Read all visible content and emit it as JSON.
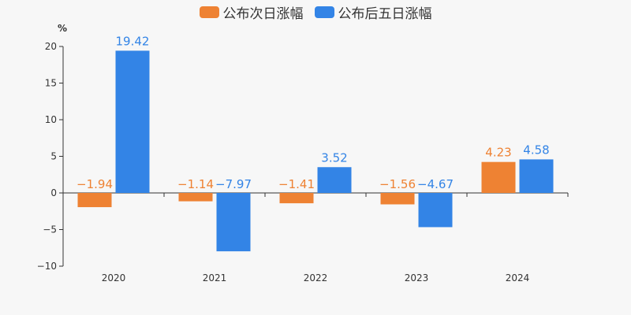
{
  "chart_data": {
    "type": "bar",
    "unit": "%",
    "categories": [
      "2020",
      "2021",
      "2022",
      "2023",
      "2024"
    ],
    "series": [
      {
        "name": "公布次日涨幅",
        "color": "#ee8233",
        "values": [
          -1.94,
          -1.14,
          -1.41,
          -1.56,
          4.23
        ]
      },
      {
        "name": "公布后五日涨幅",
        "color": "#3384e6",
        "values": [
          19.42,
          -7.97,
          3.52,
          -4.67,
          4.58
        ]
      }
    ],
    "ylim": [
      -10,
      20
    ],
    "yticks": [
      -10,
      -5,
      0,
      5,
      10,
      15,
      20
    ],
    "grid": false,
    "legend_position": "top-center",
    "data_labels": true
  }
}
